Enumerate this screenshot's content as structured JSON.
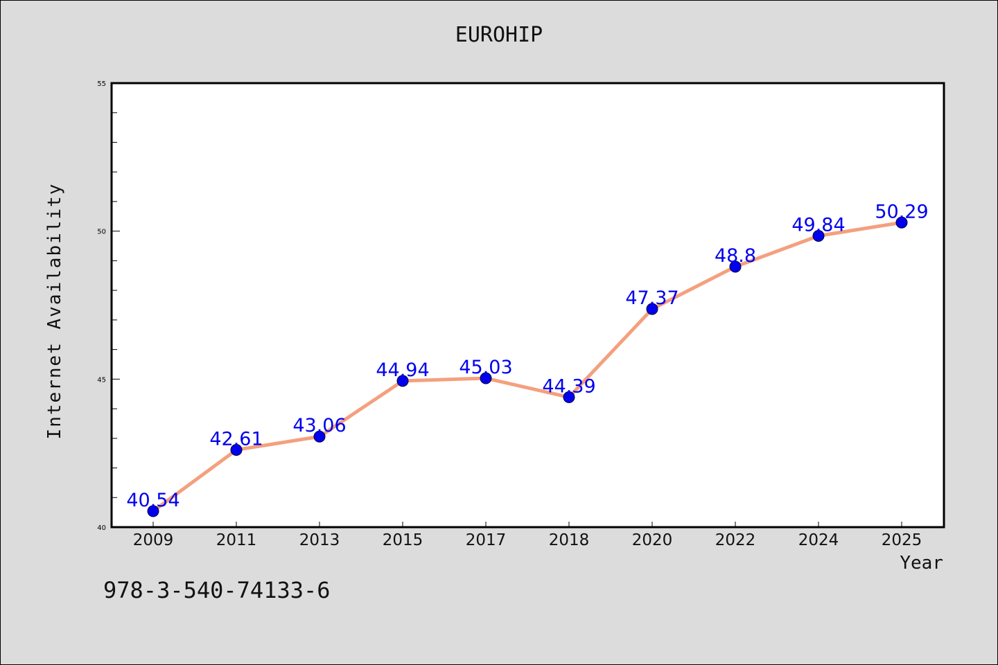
{
  "chart_data": {
    "type": "line",
    "title": "EUROHIP",
    "xlabel": "Year",
    "ylabel": "Internet Availability",
    "categories": [
      "2009",
      "2011",
      "2013",
      "2015",
      "2017",
      "2018",
      "2020",
      "2022",
      "2024",
      "2025"
    ],
    "series": [
      {
        "values": [
          40.54,
          42.61,
          43.06,
          44.94,
          45.03,
          44.39,
          47.37,
          48.8,
          49.84,
          50.29
        ],
        "labels": [
          "40.54",
          "42.61",
          "43.06",
          "44.94",
          "45.03",
          "44.39",
          "47.37",
          "48.8",
          "49.84",
          "50.29"
        ],
        "line_color": "#f4a07e",
        "marker_color": "#0000ee",
        "label_color": "#0000ee"
      }
    ],
    "ylim": [
      40,
      55
    ],
    "yticks": [
      "40",
      "45",
      "50",
      "55"
    ],
    "grid": false,
    "legend": "none"
  },
  "footnote": "978-3-540-74133-6"
}
